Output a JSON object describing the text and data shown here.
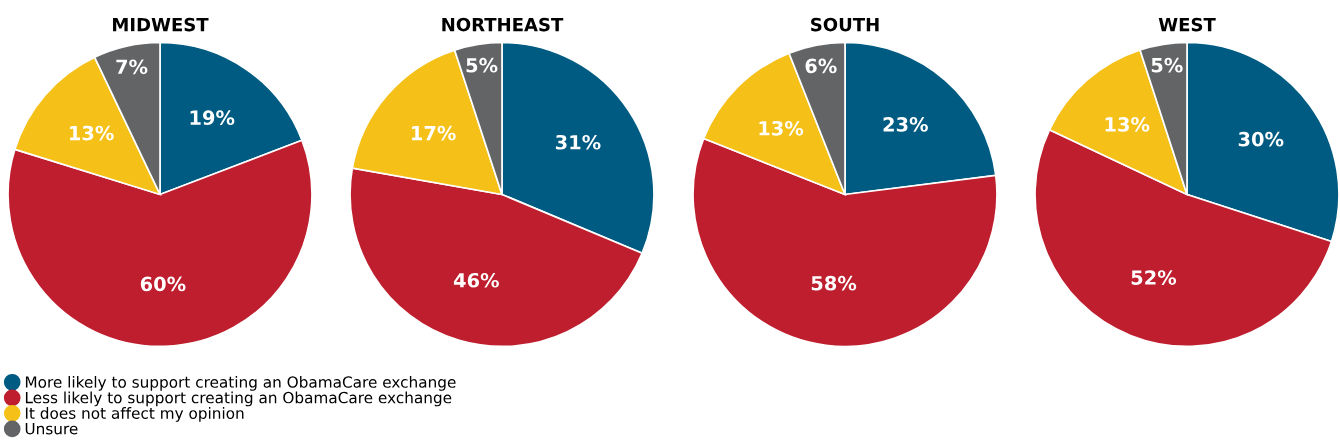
{
  "chart_data": [
    {
      "type": "pie",
      "title": "MIDWEST",
      "categories": [
        "More likely to support creating an ObamaCare exchange",
        "Less likely to support creating an ObamaCare exchange",
        "It does not affect my opinion",
        "Unsure"
      ],
      "values": [
        19,
        60,
        13,
        7
      ],
      "value_labels": [
        "19%",
        "60%",
        "13%",
        "7%"
      ],
      "colors": [
        "#005b82",
        "#be1e2d",
        "#f5c018",
        "#636466"
      ],
      "legend": "bottom"
    },
    {
      "type": "pie",
      "title": "NORTHEAST",
      "values": [
        31,
        46,
        17,
        5
      ],
      "value_labels": [
        "31%",
        "46%",
        "17%",
        "5%"
      ],
      "colors": [
        "#005b82",
        "#be1e2d",
        "#f5c018",
        "#636466"
      ]
    },
    {
      "type": "pie",
      "title": "SOUTH",
      "values": [
        23,
        58,
        13,
        6
      ],
      "value_labels": [
        "23%",
        "58%",
        "13%",
        "6%"
      ],
      "colors": [
        "#005b82",
        "#be1e2d",
        "#f5c018",
        "#636466"
      ]
    },
    {
      "type": "pie",
      "title": "WEST",
      "values": [
        30,
        52,
        13,
        5
      ],
      "value_labels": [
        "30%",
        "52%",
        "13%",
        "5%"
      ],
      "colors": [
        "#005b82",
        "#be1e2d",
        "#f5c018",
        "#636466"
      ]
    }
  ]
}
